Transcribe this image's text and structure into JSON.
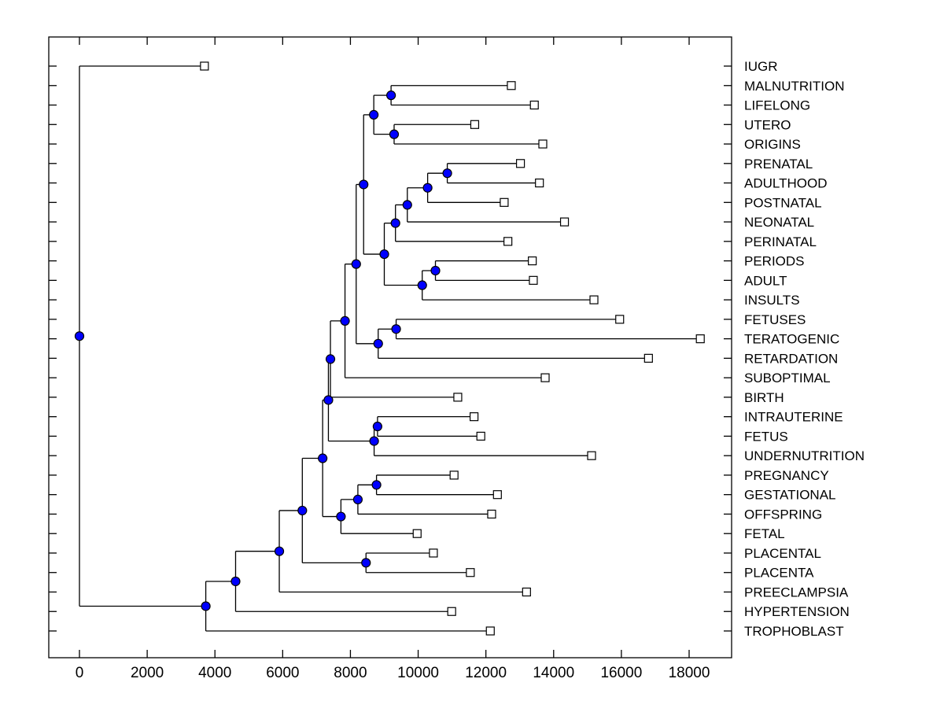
{
  "figure": {
    "background": "#ffffff",
    "frame_color": "#000000"
  },
  "palette": {
    "branch_line": "#000000",
    "internal_node_fill": "#0000ff",
    "internal_node_stroke": "#000000",
    "leaf_marker_fill": "#ffffff",
    "leaf_marker_stroke": "#000000",
    "label_color": "#000000"
  },
  "chart_data": {
    "type": "dendrogram",
    "orientation": "horizontal, root at left (distance 0), leaves to the right, leaf-name labels in right margin",
    "grid": false,
    "x_axis": {
      "tick_values": [
        0,
        2000,
        4000,
        6000,
        8000,
        10000,
        12000,
        14000,
        16000,
        18000
      ],
      "tick_labels": [
        "0",
        "2000",
        "4000",
        "6000",
        "8000",
        "10000",
        "12000",
        "14000",
        "16000",
        "18000"
      ],
      "xlim_estimate": [
        -900,
        19250
      ]
    },
    "marker_styles": {
      "leaf": "open white square",
      "internal_node": "filled blue circle"
    },
    "leaves": [
      {
        "name": "IUGR",
        "distance": 3690
      },
      {
        "name": "MALNUTRITION",
        "distance": 12750
      },
      {
        "name": "LIFELONG",
        "distance": 13430
      },
      {
        "name": "UTERO",
        "distance": 11670
      },
      {
        "name": "ORIGINS",
        "distance": 13680
      },
      {
        "name": "PRENATAL",
        "distance": 13020
      },
      {
        "name": "ADULTHOOD",
        "distance": 13580
      },
      {
        "name": "POSTNATAL",
        "distance": 12540
      },
      {
        "name": "NEONATAL",
        "distance": 14320
      },
      {
        "name": "PERINATAL",
        "distance": 12650
      },
      {
        "name": "PERIODS",
        "distance": 13370
      },
      {
        "name": "ADULT",
        "distance": 13400
      },
      {
        "name": "INSULTS",
        "distance": 15190
      },
      {
        "name": "FETUSES",
        "distance": 15950
      },
      {
        "name": "TERATOGENIC",
        "distance": 18330
      },
      {
        "name": "RETARDATION",
        "distance": 16800
      },
      {
        "name": "SUBOPTIMAL",
        "distance": 13750
      },
      {
        "name": "BIRTH",
        "distance": 11170
      },
      {
        "name": "INTRAUTERINE",
        "distance": 11650
      },
      {
        "name": "FETUS",
        "distance": 11850
      },
      {
        "name": "UNDERNUTRITION",
        "distance": 15120
      },
      {
        "name": "PREGNANCY",
        "distance": 11060
      },
      {
        "name": "GESTATIONAL",
        "distance": 12340
      },
      {
        "name": "OFFSPRING",
        "distance": 12170
      },
      {
        "name": "FETAL",
        "distance": 9970
      },
      {
        "name": "PLACENTAL",
        "distance": 10450
      },
      {
        "name": "PLACENTA",
        "distance": 11540
      },
      {
        "name": "PREECLAMPSIA",
        "distance": 13200
      },
      {
        "name": "HYPERTENSION",
        "distance": 10990
      },
      {
        "name": "TROPHOBLAST",
        "distance": 12130
      }
    ],
    "internal_nodes": [
      {
        "id": "node_malnutrition_lifelong",
        "children": [
          "MALNUTRITION",
          "LIFELONG"
        ],
        "distance": 9200
      },
      {
        "id": "node_utero_origins",
        "children": [
          "UTERO",
          "ORIGINS"
        ],
        "distance": 9290
      },
      {
        "id": "node_early_origins",
        "children": [
          "node_malnutrition_lifelong",
          "node_utero_origins"
        ],
        "distance": 8690
      },
      {
        "id": "node_prenatal_adulthood",
        "children": [
          "PRENATAL",
          "ADULTHOOD"
        ],
        "distance": 10860
      },
      {
        "id": "node_postnatal_grp",
        "children": [
          "node_prenatal_adulthood",
          "POSTNATAL"
        ],
        "distance": 10280
      },
      {
        "id": "node_neonatal_grp",
        "children": [
          "node_postnatal_grp",
          "NEONATAL"
        ],
        "distance": 9680
      },
      {
        "id": "node_perinatal_grp",
        "children": [
          "node_neonatal_grp",
          "PERINATAL"
        ],
        "distance": 9330
      },
      {
        "id": "node_periods_adult",
        "children": [
          "PERIODS",
          "ADULT"
        ],
        "distance": 10510
      },
      {
        "id": "node_insults_grp",
        "children": [
          "node_periods_adult",
          "INSULTS"
        ],
        "distance": 10120
      },
      {
        "id": "node_natal_periods",
        "children": [
          "node_perinatal_grp",
          "node_insults_grp"
        ],
        "distance": 9000
      },
      {
        "id": "node_upper_main",
        "children": [
          "node_early_origins",
          "node_natal_periods"
        ],
        "distance": 8390
      },
      {
        "id": "node_fetuses_teratogenic",
        "children": [
          "FETUSES",
          "TERATOGENIC"
        ],
        "distance": 9350
      },
      {
        "id": "node_retardation_grp",
        "children": [
          "node_fetuses_teratogenic",
          "RETARDATION"
        ],
        "distance": 8820
      },
      {
        "id": "node_mid_main",
        "children": [
          "node_upper_main",
          "node_retardation_grp"
        ],
        "distance": 8170
      },
      {
        "id": "node_suboptimal_grp",
        "children": [
          "node_mid_main",
          "SUBOPTIMAL"
        ],
        "distance": 7840
      },
      {
        "id": "node_birth_grp",
        "children": [
          "node_suboptimal_grp",
          "BIRTH"
        ],
        "distance": 7410
      },
      {
        "id": "node_intrauterine_fetus",
        "children": [
          "INTRAUTERINE",
          "FETUS"
        ],
        "distance": 8800
      },
      {
        "id": "node_undernutrition_grp",
        "children": [
          "node_intrauterine_fetus",
          "UNDERNUTRITION"
        ],
        "distance": 8700
      },
      {
        "id": "node_birth_undernutrition",
        "children": [
          "node_birth_grp",
          "node_undernutrition_grp"
        ],
        "distance": 7350
      },
      {
        "id": "node_pregnancy_gestational",
        "children": [
          "PREGNANCY",
          "GESTATIONAL"
        ],
        "distance": 8770
      },
      {
        "id": "node_offspring_grp",
        "children": [
          "node_pregnancy_gestational",
          "OFFSPRING"
        ],
        "distance": 8220
      },
      {
        "id": "node_fetal_grp",
        "children": [
          "node_offspring_grp",
          "FETAL"
        ],
        "distance": 7720
      },
      {
        "id": "node_big_upper",
        "children": [
          "node_birth_undernutrition",
          "node_fetal_grp"
        ],
        "distance": 7180
      },
      {
        "id": "node_placental_placenta",
        "children": [
          "PLACENTAL",
          "PLACENTA"
        ],
        "distance": 8460
      },
      {
        "id": "node_placenta_grp",
        "children": [
          "node_big_upper",
          "node_placental_placenta"
        ],
        "distance": 6580
      },
      {
        "id": "node_preeclampsia_grp",
        "children": [
          "node_placenta_grp",
          "PREECLAMPSIA"
        ],
        "distance": 5900
      },
      {
        "id": "node_hypertension_grp",
        "children": [
          "node_preeclampsia_grp",
          "HYPERTENSION"
        ],
        "distance": 4610
      },
      {
        "id": "node_trophoblast_grp",
        "children": [
          "node_hypertension_grp",
          "TROPHOBLAST"
        ],
        "distance": 3730
      },
      {
        "id": "root",
        "children": [
          "IUGR",
          "node_trophoblast_grp"
        ],
        "distance": 0
      }
    ],
    "root_id": "root"
  }
}
